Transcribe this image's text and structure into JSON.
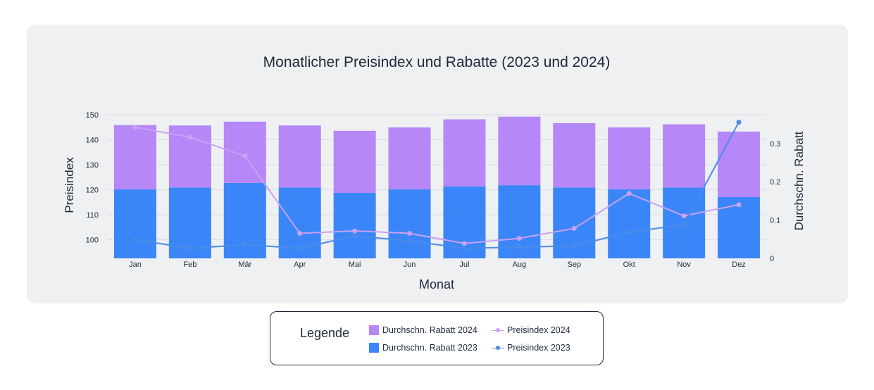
{
  "colors": {
    "rabatt_2024": "#b587f7",
    "rabatt_2023": "#3a86f8",
    "preis_2024": "#c9a1f5",
    "preis_2023": "#4a8be8",
    "grid": "#d9dce1",
    "axis_text": "#1e2a3b"
  },
  "chart_data": {
    "type": "bar+line",
    "title": "Monatlicher Preisindex und Rabatte (2023 und 2024)",
    "xlabel": "Monat",
    "ylabel": "Preisindex",
    "y2label": "Durchschn. Rabatt",
    "ylim": [
      92.5,
      150
    ],
    "y_ticks": [
      100,
      110,
      120,
      130,
      140,
      150
    ],
    "y2lim": [
      0,
      0.375
    ],
    "y2_ticks": [
      0,
      0.1,
      0.2,
      0.3
    ],
    "y2_tick_labels": [
      "0",
      "0.1",
      "0.2",
      "0.3"
    ],
    "categories": [
      "Jan",
      "Feb",
      "Mär",
      "Apr",
      "Mai",
      "Jun",
      "Jul",
      "Aug",
      "Sep",
      "Okt",
      "Nov",
      "Dez"
    ],
    "series": [
      {
        "name": "Durchschn. Rabatt 2023",
        "type": "bar",
        "axis": "right",
        "values": [
          0.18,
          0.185,
          0.197,
          0.185,
          0.171,
          0.18,
          0.188,
          0.191,
          0.185,
          0.18,
          0.185,
          0.16
        ]
      },
      {
        "name": "Durchschn. Rabatt 2024",
        "type": "bar",
        "axis": "right",
        "values": [
          0.168,
          0.162,
          0.16,
          0.162,
          0.162,
          0.162,
          0.175,
          0.179,
          0.168,
          0.162,
          0.165,
          0.171
        ]
      },
      {
        "name": "Preisindex 2024",
        "type": "line",
        "axis": "left",
        "values": [
          145,
          141,
          133.5,
          102.5,
          103.5,
          102.5,
          98.5,
          100.5,
          104.5,
          118.5,
          109.5,
          114
        ]
      },
      {
        "name": "Preisindex 2023",
        "type": "line",
        "axis": "left",
        "values": [
          100,
          96.5,
          98,
          96.5,
          101.5,
          99.5,
          96.5,
          97,
          97.5,
          103,
          106,
          147
        ]
      }
    ]
  },
  "legend": {
    "title": "Legende",
    "items": [
      {
        "label": "Durchschn. Rabatt 2024",
        "kind": "bar",
        "color_key": "rabatt_2024"
      },
      {
        "label": "Preisindex 2024",
        "kind": "line",
        "color_key": "preis_2024"
      },
      {
        "label": "Durchschn. Rabatt 2023",
        "kind": "bar",
        "color_key": "rabatt_2023"
      },
      {
        "label": "Preisindex 2023",
        "kind": "line",
        "color_key": "preis_2023"
      }
    ]
  }
}
